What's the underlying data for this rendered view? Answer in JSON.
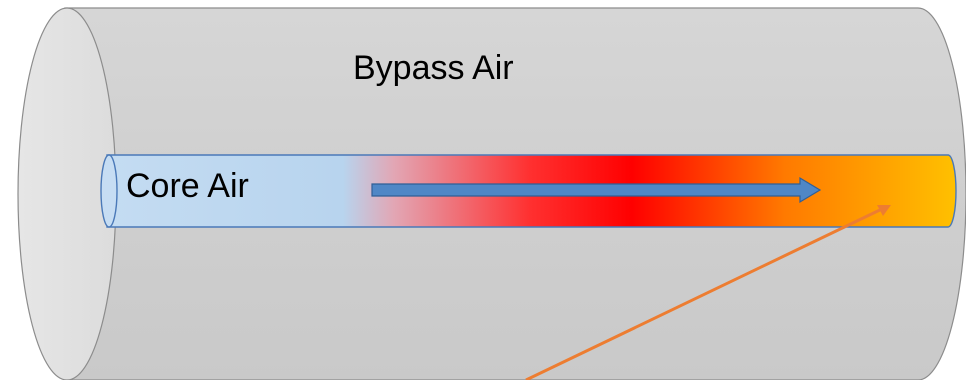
{
  "diagram": {
    "outer_label": "Bypass Air",
    "inner_label": "Core Air",
    "colors": {
      "outer_body": "#d0d0d0",
      "outer_body_light": "#e3e3e3",
      "outer_end_cap": "#e8e8e8",
      "outer_stroke": "#8c8c8c",
      "core_start": "#c3dbf1",
      "core_mid": "#ff0000",
      "core_end": "#ffc000",
      "core_stroke": "#4a79b8",
      "flow_arrow_fill": "#4f87c6",
      "flow_arrow_stroke": "#2f5f97",
      "pointer_line": "#ed7d31"
    }
  }
}
